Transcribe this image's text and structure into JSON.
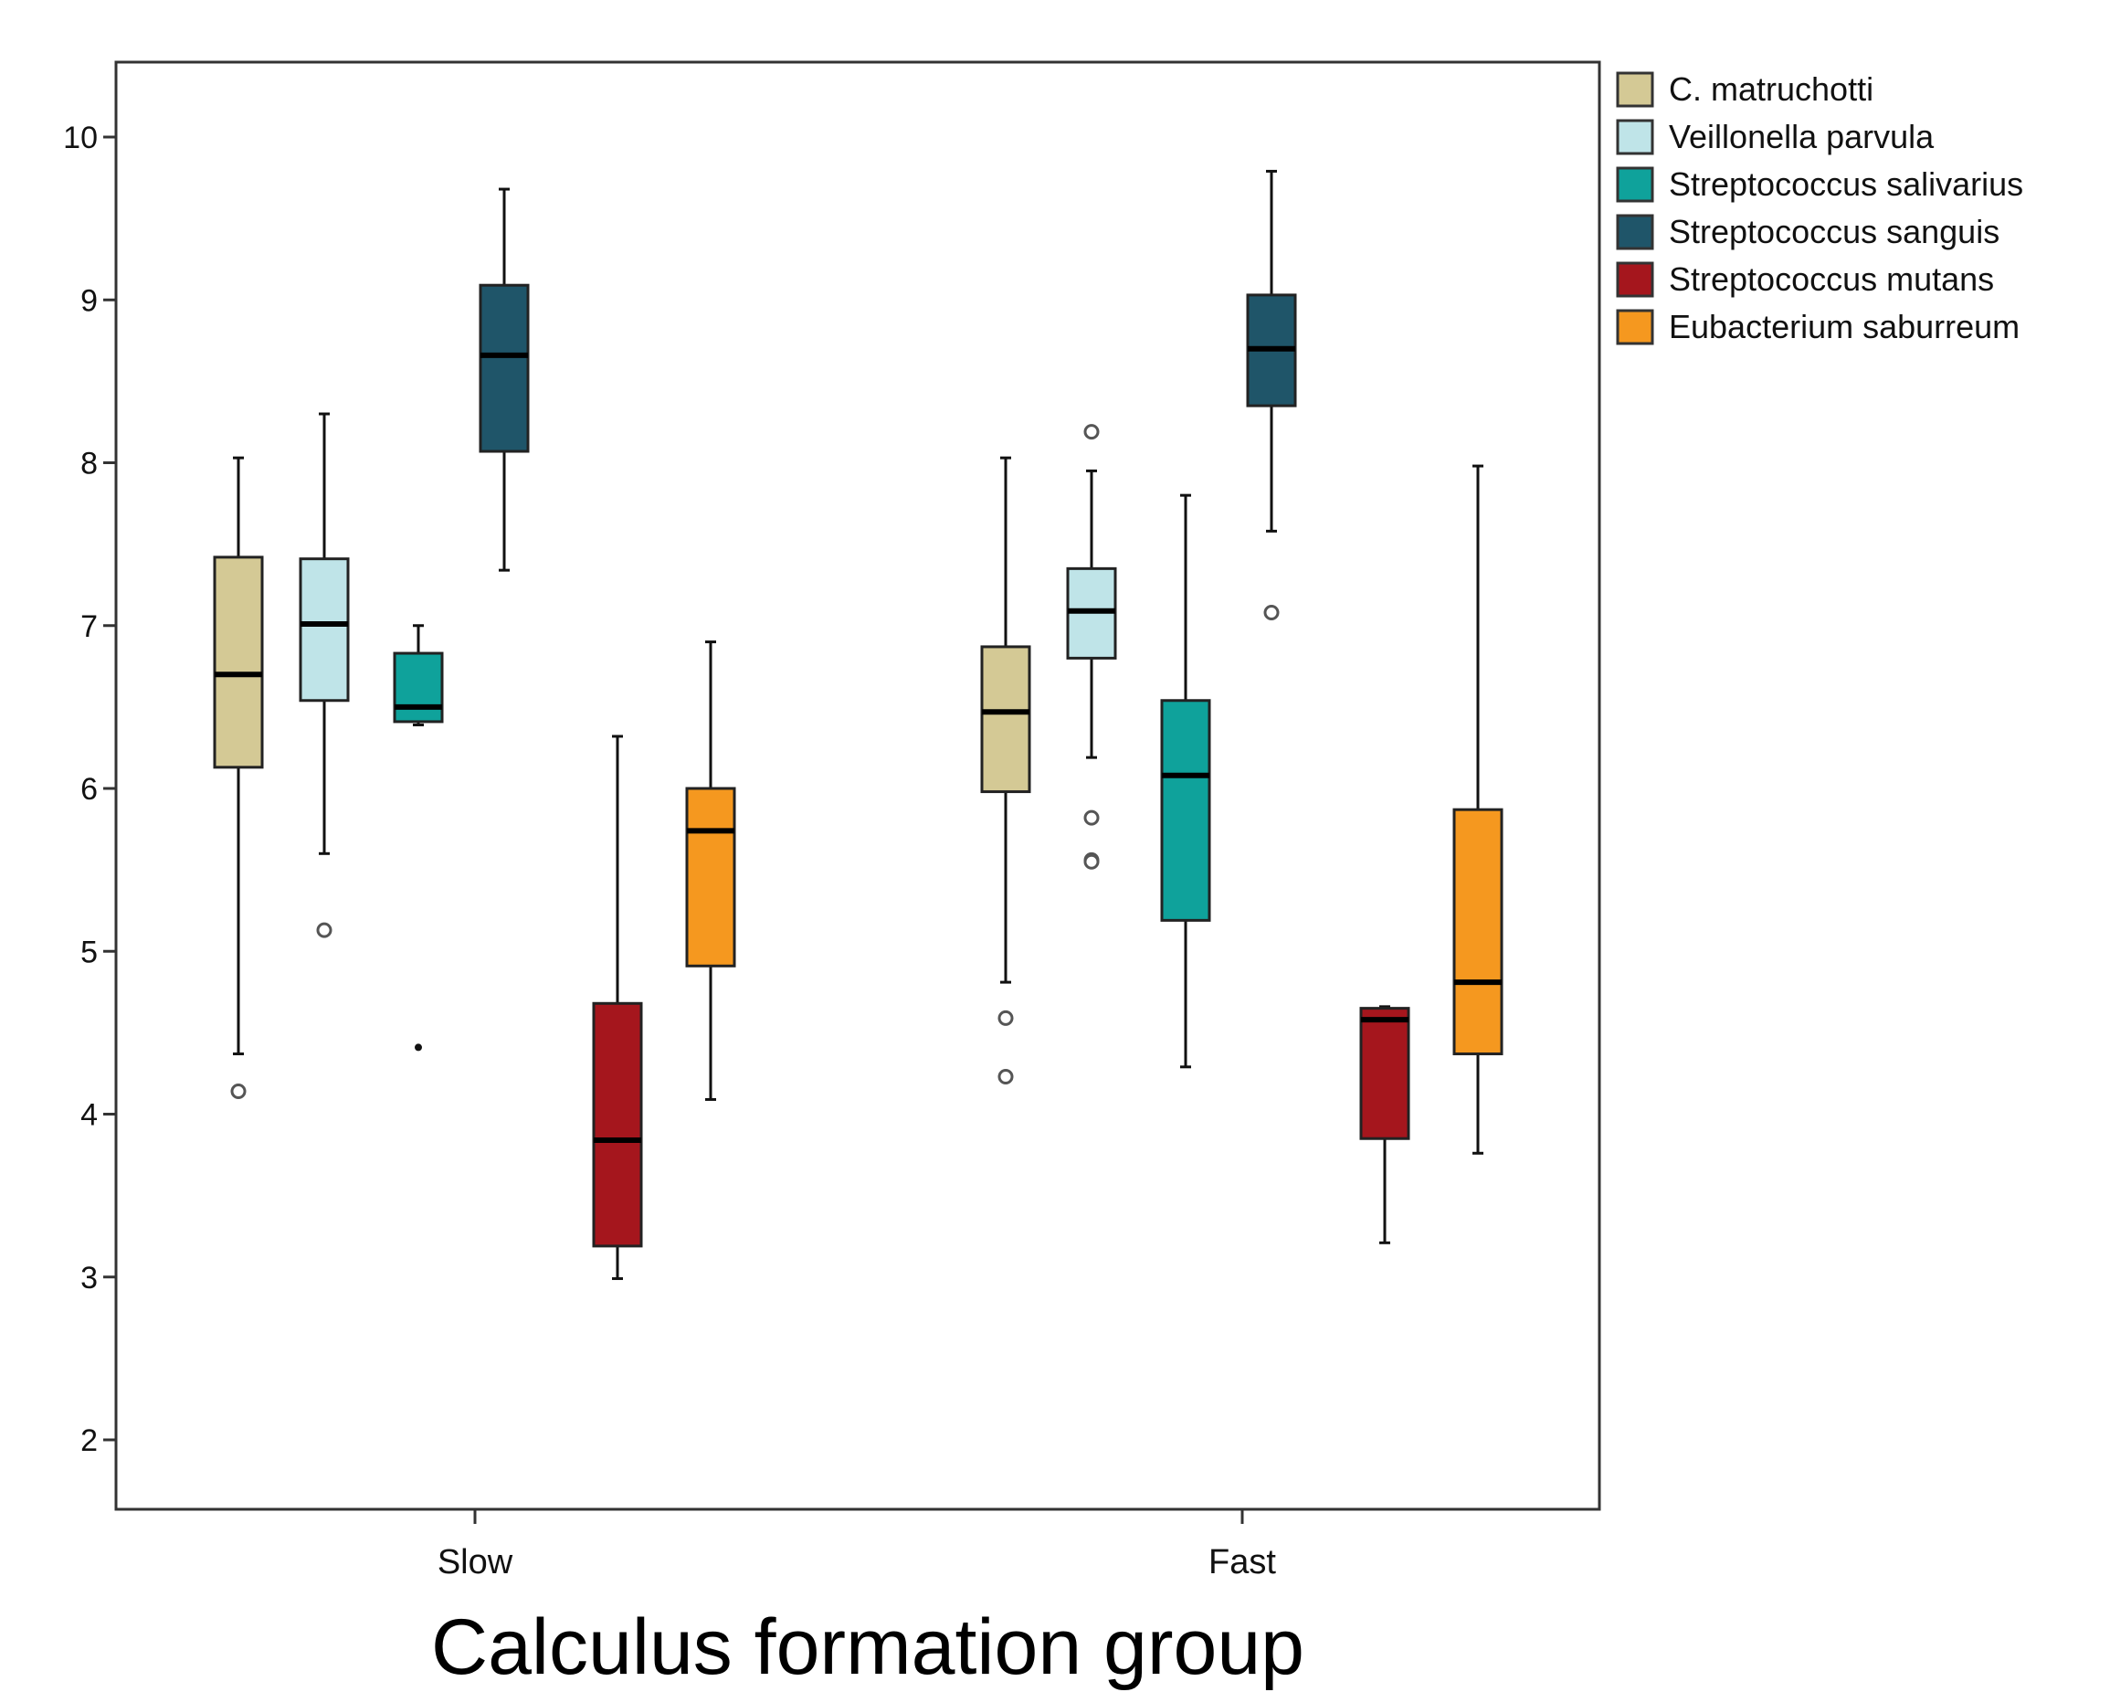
{
  "chart_data": {
    "type": "boxplot",
    "title": "",
    "xlabel": "Calculus formation group",
    "ylabel": "",
    "ylim": [
      1.6,
      10.5
    ],
    "yticks": [
      2,
      3,
      4,
      5,
      6,
      7,
      8,
      9,
      10
    ],
    "categories": [
      "Slow",
      "Fast"
    ],
    "grid": false,
    "legend_position": "outside-right-top",
    "series": [
      {
        "name": "C. matruchotti",
        "color": "#d4c995",
        "boxes": [
          {
            "category": "Slow",
            "whisker_low": 4.37,
            "q1": 6.13,
            "median": 6.7,
            "q3": 7.42,
            "whisker_high": 8.03,
            "outliers": [
              4.14
            ],
            "extremes": []
          },
          {
            "category": "Fast",
            "whisker_low": 4.81,
            "q1": 5.98,
            "median": 6.47,
            "q3": 6.87,
            "whisker_high": 8.03,
            "outliers": [
              4.59,
              4.23
            ],
            "extremes": []
          }
        ]
      },
      {
        "name": "Veillonella parvula",
        "color": "#bfe4e8",
        "boxes": [
          {
            "category": "Slow",
            "whisker_low": 5.6,
            "q1": 6.54,
            "median": 7.01,
            "q3": 7.41,
            "whisker_high": 8.3,
            "outliers": [
              5.13
            ],
            "extremes": []
          },
          {
            "category": "Fast",
            "whisker_low": 6.19,
            "q1": 6.8,
            "median": 7.09,
            "q3": 7.35,
            "whisker_high": 7.95,
            "outliers": [
              8.19,
              5.82,
              5.56,
              5.55
            ],
            "extremes": []
          }
        ]
      },
      {
        "name": "Streptococcus salivarius",
        "color": "#0fa29b",
        "boxes": [
          {
            "category": "Slow",
            "whisker_low": 6.39,
            "q1": 6.41,
            "median": 6.5,
            "q3": 6.83,
            "whisker_high": 7.0,
            "outliers": [],
            "extremes": [
              4.41
            ]
          },
          {
            "category": "Fast",
            "whisker_low": 4.29,
            "q1": 5.19,
            "median": 6.08,
            "q3": 6.54,
            "whisker_high": 7.8,
            "outliers": [],
            "extremes": []
          }
        ]
      },
      {
        "name": "Streptococcus sanguis",
        "color": "#1f5569",
        "boxes": [
          {
            "category": "Slow",
            "whisker_low": 7.34,
            "q1": 8.07,
            "median": 8.66,
            "q3": 9.09,
            "whisker_high": 9.68,
            "outliers": [],
            "extremes": []
          },
          {
            "category": "Fast",
            "whisker_low": 7.58,
            "q1": 8.35,
            "median": 8.7,
            "q3": 9.03,
            "whisker_high": 9.79,
            "outliers": [
              7.08
            ],
            "extremes": []
          }
        ]
      },
      {
        "name": "Streptococcus mutans",
        "color": "#a5161d",
        "boxes": [
          {
            "category": "Slow",
            "whisker_low": 2.99,
            "q1": 3.19,
            "median": 3.84,
            "q3": 4.68,
            "whisker_high": 6.32,
            "outliers": [],
            "extremes": []
          },
          {
            "category": "Fast",
            "whisker_low": 3.21,
            "q1": 3.85,
            "median": 4.58,
            "q3": 4.65,
            "whisker_high": 4.66,
            "outliers": [],
            "extremes": []
          }
        ]
      },
      {
        "name": "Eubacterium saburreum",
        "color": "#f5981f",
        "boxes": [
          {
            "category": "Slow",
            "whisker_low": 4.09,
            "q1": 4.91,
            "median": 5.74,
            "q3": 6.0,
            "whisker_high": 6.9,
            "outliers": [],
            "extremes": []
          },
          {
            "category": "Fast",
            "whisker_low": 3.76,
            "q1": 4.37,
            "median": 4.81,
            "q3": 5.87,
            "whisker_high": 7.98,
            "outliers": [],
            "extremes": []
          }
        ]
      }
    ]
  }
}
